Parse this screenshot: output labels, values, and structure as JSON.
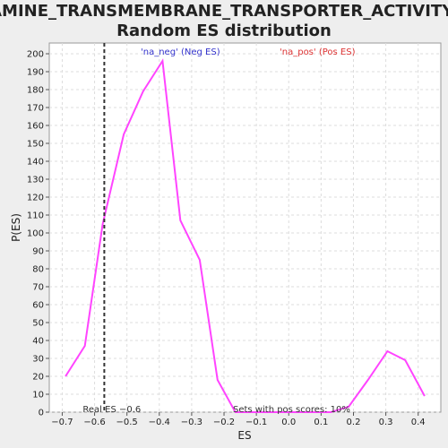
{
  "chart_data": {
    "type": "line",
    "title_line1": "AMINE_TRANSMEMBRANE_TRANSPORTER_ACTIVITY:",
    "title_line2": "Random ES distribution",
    "xlabel": "ES",
    "ylabel": "P(ES)",
    "xlim": [
      -0.74,
      0.47
    ],
    "ylim": [
      0,
      206
    ],
    "x_ticks": [
      -0.7,
      -0.6,
      -0.5,
      -0.4,
      -0.3,
      -0.2,
      -0.1,
      0.0,
      0.1,
      0.2,
      0.3,
      0.4
    ],
    "x_tick_labels": [
      "−0.7",
      "−0.6",
      "−0.5",
      "−0.4",
      "−0.3",
      "−0.2",
      "−0.1",
      "0.0",
      "0.1",
      "0.2",
      "0.3",
      "0.4"
    ],
    "y_ticks": [
      0,
      10,
      20,
      30,
      40,
      50,
      60,
      70,
      80,
      90,
      100,
      110,
      120,
      130,
      140,
      150,
      160,
      170,
      180,
      190,
      200
    ],
    "grid": true,
    "series": [
      {
        "name": "",
        "color": "#ff44ff",
        "x": [
          -0.69,
          -0.63,
          -0.575,
          -0.51,
          -0.45,
          -0.39,
          -0.335,
          -0.275,
          -0.22,
          -0.165,
          -0.105,
          -0.05,
          0.01,
          0.07,
          0.13,
          0.185,
          0.245,
          0.305,
          0.36,
          0.42
        ],
        "y": [
          20,
          37,
          105,
          155,
          179,
          196,
          107,
          85,
          18,
          0,
          0,
          0,
          0,
          0,
          0,
          3,
          18,
          34,
          29,
          9
        ]
      }
    ],
    "real_es": -0.57,
    "real_es_label": "Real ES −0.6",
    "legend": [
      {
        "label": "'na_neg' (Neg ES)",
        "color": "#3333cc"
      },
      {
        "label": "'na_pos' (Pos ES)",
        "color": "#dd3333"
      }
    ],
    "annotation": "Sets with pos scores: 10%"
  }
}
